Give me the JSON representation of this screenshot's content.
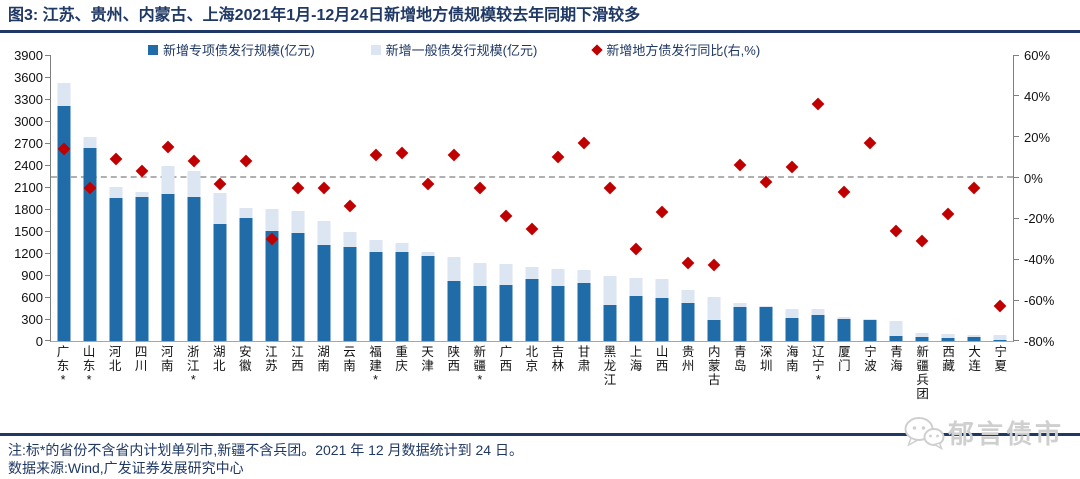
{
  "title": "图3:  江苏、贵州、内蒙古、上海2021年1月-12月24日新增地方债规模较去年同期下滑较多",
  "legend": [
    {
      "label": "新增专项债发行规模(亿元)",
      "color": "#1F6CA8",
      "marker": "square"
    },
    {
      "label": "新增一般债发行规模(亿元)",
      "color": "#DCE6F2",
      "marker": "square"
    },
    {
      "label": "新增地方债发行同比(右,%)",
      "color": "#C00000",
      "marker": "diamond"
    }
  ],
  "chart_data": {
    "type": "bar",
    "subtype": "stacked-bars-with-scatter-overlay",
    "legend_position": "top",
    "grid": "off",
    "zero_dashed_line_on_right_axis": 0,
    "categories": [
      "广东*",
      "山东*",
      "河北",
      "四川",
      "河南",
      "浙江*",
      "湖北",
      "安徽",
      "江苏",
      "江西",
      "湖南",
      "云南",
      "福建*",
      "重庆",
      "天津",
      "陕西",
      "新疆*",
      "广西",
      "北京",
      "吉林",
      "甘肃",
      "黑龙江",
      "上海",
      "山西",
      "贵州",
      "内蒙古",
      "青岛",
      "深圳",
      "海南",
      "辽宁*",
      "厦门",
      "宁波",
      "青海",
      "新疆兵团",
      "西藏",
      "大连",
      "宁夏"
    ],
    "series": [
      {
        "name": "新增专项债发行规模(亿元)",
        "type": "bar",
        "stack": "total",
        "axis": "left",
        "color": "#1F6CA8",
        "values": [
          3200,
          2635,
          1950,
          1960,
          2000,
          1960,
          1590,
          1675,
          1505,
          1475,
          1310,
          1280,
          1220,
          1220,
          1160,
          820,
          750,
          770,
          845,
          750,
          795,
          490,
          620,
          580,
          520,
          290,
          465,
          465,
          310,
          355,
          300,
          290,
          75,
          55,
          45,
          55,
          10
        ]
      },
      {
        "name": "新增一般债发行规模(亿元)",
        "type": "bar",
        "stack": "total",
        "axis": "left",
        "color": "#DCE6F2",
        "values": [
          320,
          145,
          155,
          70,
          380,
          365,
          430,
          140,
          295,
          295,
          330,
          210,
          160,
          120,
          50,
          320,
          310,
          285,
          160,
          235,
          180,
          395,
          245,
          260,
          175,
          315,
          60,
          15,
          125,
          80,
          30,
          10,
          200,
          60,
          55,
          30,
          75
        ]
      },
      {
        "name": "新增地方债发行同比(右,%)",
        "type": "scatter",
        "marker": "diamond",
        "axis": "right",
        "unit": "%",
        "color": "#C00000",
        "values": [
          14,
          -5,
          9,
          3,
          15,
          8,
          -3,
          8,
          -30,
          -5,
          -5,
          -14,
          11,
          12,
          -3,
          11,
          -5,
          -19,
          -25,
          10,
          17,
          -5,
          -35,
          -17,
          -42,
          -43,
          6,
          -2,
          5,
          36,
          -7,
          17,
          -26,
          -31,
          -18,
          -5,
          -63
        ]
      }
    ],
    "left_axis": {
      "min": 0,
      "max": 3900,
      "step": 300,
      "tick_labels": [
        "0",
        "300",
        "600",
        "900",
        "1200",
        "1500",
        "1800",
        "2100",
        "2400",
        "2700",
        "3000",
        "3300",
        "3600",
        "3900"
      ]
    },
    "right_axis": {
      "min": -80,
      "max": 60,
      "step": 20,
      "unit": "%",
      "tick_labels": [
        "-80%",
        "-60%",
        "-40%",
        "-20%",
        "0%",
        "20%",
        "40%",
        "60%"
      ]
    }
  },
  "notes": {
    "line1": "注:标*的省份不含省内计划单列市,新疆不含兵团。2021 年 12 月数据统计到 24 日。",
    "line2": "数据来源:Wind,广发证券发展研究中心"
  },
  "logo": {
    "text": "郁言债市",
    "icon": "wechat-chat-bubbles-icon"
  }
}
